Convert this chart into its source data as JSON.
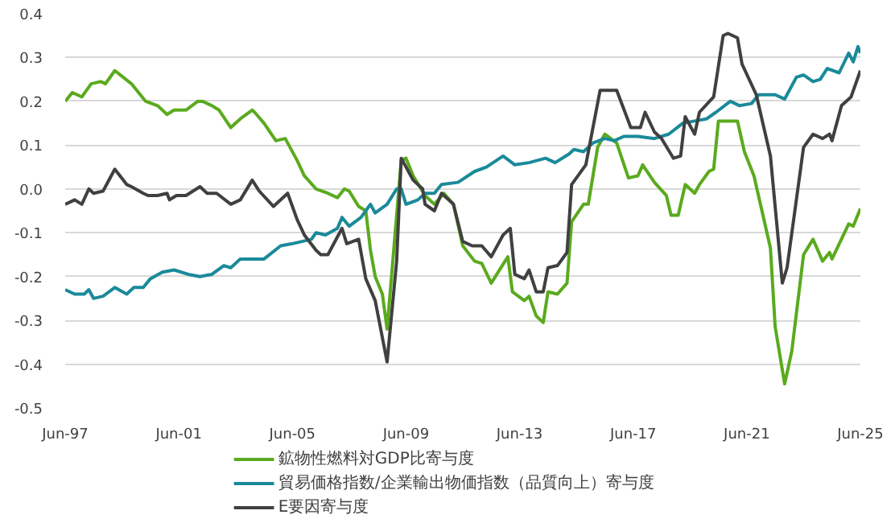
{
  "chart_data": {
    "type": "line",
    "xlim": [
      "1997-06",
      "2025-06"
    ],
    "xticks": [
      {
        "value": "1997-06",
        "label": "Jun-97"
      },
      {
        "value": "2001-06",
        "label": "Jun-01"
      },
      {
        "value": "2005-06",
        "label": "Jun-05"
      },
      {
        "value": "2009-06",
        "label": "Jun-09"
      },
      {
        "value": "2013-06",
        "label": "Jun-13"
      },
      {
        "value": "2017-06",
        "label": "Jun-17"
      },
      {
        "value": "2021-06",
        "label": "Jun-21"
      },
      {
        "value": "2025-06",
        "label": "Jun-25"
      }
    ],
    "ylim": [
      -0.5,
      0.4
    ],
    "yticks": [
      0.4,
      0.3,
      0.2,
      0.1,
      {
        "value": 0,
        "label": "0.0"
      },
      -0.1,
      -0.2,
      -0.3,
      -0.4,
      -0.5
    ],
    "grid": "y",
    "legend": "bottom",
    "marker": "none",
    "line_style": "solid",
    "series": [
      {
        "name": "鉱物性燃料対GDP比寄与度",
        "color": "#5aaa1e",
        "x": [
          "1997-06",
          "1997-09",
          "1998-01",
          "1998-05",
          "1998-09",
          "1998-11",
          "1999-03",
          "1999-10",
          "2000-04",
          "2000-09",
          "2001-01",
          "2001-04",
          "2001-09",
          "2002-02",
          "2002-04",
          "2002-08",
          "2002-11",
          "2003-04",
          "2003-08",
          "2004-01",
          "2004-02",
          "2004-06",
          "2004-11",
          "2005-03",
          "2005-08",
          "2005-11",
          "2006-04",
          "2006-09",
          "2007-01",
          "2007-04",
          "2007-06",
          "2007-10",
          "2008-01",
          "2008-03",
          "2008-05",
          "2008-08",
          "2008-10",
          "2009-04",
          "2009-06",
          "2009-09",
          "2010-02",
          "2010-06",
          "2010-10",
          "2011-02",
          "2011-06",
          "2011-11",
          "2012-02",
          "2012-06",
          "2013-01",
          "2013-03",
          "2013-08",
          "2013-10",
          "2014-01",
          "2014-04",
          "2014-06",
          "2014-10",
          "2015-02",
          "2015-04",
          "2015-09",
          "2015-11",
          "2016-03",
          "2016-06",
          "2016-11",
          "2017-04",
          "2017-08",
          "2017-10",
          "2018-03",
          "2018-08",
          "2018-10",
          "2019-01",
          "2019-04",
          "2019-08",
          "2019-10",
          "2020-02",
          "2020-04",
          "2020-06",
          "2021-02",
          "2021-05",
          "2021-09",
          "2022-04",
          "2022-06",
          "2022-10",
          "2023-01",
          "2023-06",
          "2023-10",
          "2024-02",
          "2024-05",
          "2024-06",
          "2025-01",
          "2025-03",
          "2025-06"
        ],
        "values": [
          0.2,
          0.22,
          0.21,
          0.24,
          0.245,
          0.24,
          0.27,
          0.24,
          0.2,
          0.19,
          0.17,
          0.18,
          0.18,
          0.2,
          0.2,
          0.19,
          0.18,
          0.14,
          0.16,
          0.18,
          0.175,
          0.15,
          0.11,
          0.115,
          0.065,
          0.03,
          0.0,
          -0.01,
          -0.02,
          0.0,
          -0.005,
          -0.04,
          -0.05,
          -0.14,
          -0.2,
          -0.24,
          -0.32,
          0.065,
          0.07,
          0.03,
          -0.015,
          -0.035,
          -0.01,
          -0.035,
          -0.13,
          -0.165,
          -0.17,
          -0.215,
          -0.155,
          -0.235,
          -0.255,
          -0.245,
          -0.29,
          -0.305,
          -0.235,
          -0.24,
          -0.215,
          -0.075,
          -0.035,
          -0.035,
          0.095,
          0.125,
          0.105,
          0.025,
          0.03,
          0.055,
          0.015,
          -0.015,
          -0.06,
          -0.06,
          0.01,
          -0.01,
          0.01,
          0.04,
          0.045,
          0.155,
          0.155,
          0.085,
          0.03,
          -0.135,
          -0.315,
          -0.445,
          -0.37,
          -0.15,
          -0.115,
          -0.165,
          -0.145,
          -0.16,
          -0.08,
          -0.085,
          -0.045
        ]
      },
      {
        "name": "貿易価格指数/企業輸出物価指数（品質向上）寄与度",
        "color": "#1a8a9a",
        "x": [
          "1997-06",
          "1997-10",
          "1998-02",
          "1998-04",
          "1998-06",
          "1998-10",
          "1999-03",
          "1999-08",
          "1999-11",
          "2000-03",
          "2000-06",
          "2000-11",
          "2001-04",
          "2001-10",
          "2002-03",
          "2002-08",
          "2003-01",
          "2003-04",
          "2003-08",
          "2004-01",
          "2004-06",
          "2005-01",
          "2005-06",
          "2006-02",
          "2006-04",
          "2006-08",
          "2007-01",
          "2007-03",
          "2007-06",
          "2007-11",
          "2008-03",
          "2008-05",
          "2008-10",
          "2009-02",
          "2009-04",
          "2009-06",
          "2009-11",
          "2010-02",
          "2010-06",
          "2010-09",
          "2011-04",
          "2011-11",
          "2012-04",
          "2012-11",
          "2013-04",
          "2013-10",
          "2014-05",
          "2014-09",
          "2015-03",
          "2015-05",
          "2015-09",
          "2016-01",
          "2016-06",
          "2016-10",
          "2017-02",
          "2017-08",
          "2018-03",
          "2018-09",
          "2019-03",
          "2019-08",
          "2020-01",
          "2020-05",
          "2020-11",
          "2021-03",
          "2021-08",
          "2021-11",
          "2022-06",
          "2022-10",
          "2023-03",
          "2023-06",
          "2023-10",
          "2024-01",
          "2024-04",
          "2024-09",
          "2025-01",
          "2025-03",
          "2025-05",
          "2025-06"
        ],
        "values": [
          -0.23,
          -0.24,
          -0.24,
          -0.23,
          -0.25,
          -0.245,
          -0.225,
          -0.24,
          -0.225,
          -0.225,
          -0.205,
          -0.19,
          -0.185,
          -0.195,
          -0.2,
          -0.195,
          -0.175,
          -0.18,
          -0.16,
          -0.16,
          -0.16,
          -0.13,
          -0.125,
          -0.115,
          -0.1,
          -0.105,
          -0.09,
          -0.065,
          -0.085,
          -0.065,
          -0.035,
          -0.055,
          -0.035,
          0.0,
          0.0,
          -0.035,
          -0.025,
          -0.01,
          -0.01,
          0.01,
          0.015,
          0.04,
          0.05,
          0.075,
          0.055,
          0.06,
          0.07,
          0.06,
          0.08,
          0.09,
          0.085,
          0.105,
          0.115,
          0.11,
          0.12,
          0.12,
          0.115,
          0.125,
          0.15,
          0.155,
          0.16,
          0.175,
          0.2,
          0.19,
          0.195,
          0.215,
          0.215,
          0.205,
          0.255,
          0.26,
          0.245,
          0.25,
          0.275,
          0.265,
          0.31,
          0.29,
          0.325,
          0.31
        ]
      },
      {
        "name": "E要因寄与度",
        "color": "#404040",
        "x": [
          "1997-06",
          "1997-10",
          "1998-01",
          "1998-04",
          "1998-06",
          "1998-10",
          "1999-03",
          "1999-08",
          "1999-10",
          "2000-03",
          "2000-05",
          "2000-09",
          "2001-01",
          "2001-02",
          "2001-05",
          "2001-09",
          "2002-03",
          "2002-06",
          "2002-10",
          "2003-04",
          "2003-08",
          "2004-01",
          "2004-04",
          "2004-10",
          "2005-04",
          "2005-08",
          "2005-11",
          "2006-04",
          "2006-06",
          "2006-09",
          "2007-03",
          "2007-05",
          "2007-10",
          "2008-01",
          "2008-05",
          "2008-10",
          "2009-02",
          "2009-04",
          "2009-09",
          "2010-01",
          "2010-02",
          "2010-06",
          "2010-09",
          "2011-02",
          "2011-06",
          "2011-10",
          "2012-02",
          "2012-06",
          "2012-11",
          "2013-02",
          "2013-04",
          "2013-08",
          "2013-10",
          "2014-01",
          "2014-04",
          "2014-06",
          "2014-10",
          "2015-02",
          "2015-04",
          "2015-10",
          "2016-04",
          "2016-11",
          "2017-05",
          "2017-09",
          "2017-11",
          "2018-03",
          "2018-06",
          "2018-11",
          "2019-02",
          "2019-04",
          "2019-08",
          "2019-10",
          "2020-04",
          "2020-08",
          "2020-10",
          "2021-02",
          "2021-04",
          "2021-10",
          "2022-04",
          "2022-09",
          "2022-11",
          "2023-06",
          "2023-10",
          "2024-02",
          "2024-05",
          "2024-06",
          "2024-10",
          "2025-02",
          "2025-06"
        ],
        "values": [
          -0.035,
          -0.025,
          -0.035,
          0.0,
          -0.01,
          -0.005,
          0.045,
          0.01,
          0.005,
          -0.01,
          -0.015,
          -0.015,
          -0.01,
          -0.025,
          -0.015,
          -0.015,
          0.005,
          -0.01,
          -0.01,
          -0.035,
          -0.025,
          0.02,
          -0.005,
          -0.04,
          -0.01,
          -0.07,
          -0.105,
          -0.14,
          -0.15,
          -0.15,
          -0.09,
          -0.125,
          -0.115,
          -0.205,
          -0.255,
          -0.395,
          -0.165,
          0.07,
          0.02,
          0.0,
          -0.035,
          -0.05,
          -0.01,
          -0.035,
          -0.12,
          -0.13,
          -0.13,
          -0.155,
          -0.105,
          -0.09,
          -0.195,
          -0.205,
          -0.185,
          -0.235,
          -0.235,
          -0.18,
          -0.175,
          -0.145,
          0.01,
          0.055,
          0.225,
          0.225,
          0.14,
          0.14,
          0.175,
          0.13,
          0.115,
          0.07,
          0.075,
          0.165,
          0.125,
          0.175,
          0.21,
          0.35,
          0.355,
          0.345,
          0.285,
          0.215,
          0.075,
          -0.215,
          -0.18,
          0.095,
          0.125,
          0.115,
          0.125,
          0.11,
          0.19,
          0.21,
          0.27
        ]
      }
    ]
  }
}
